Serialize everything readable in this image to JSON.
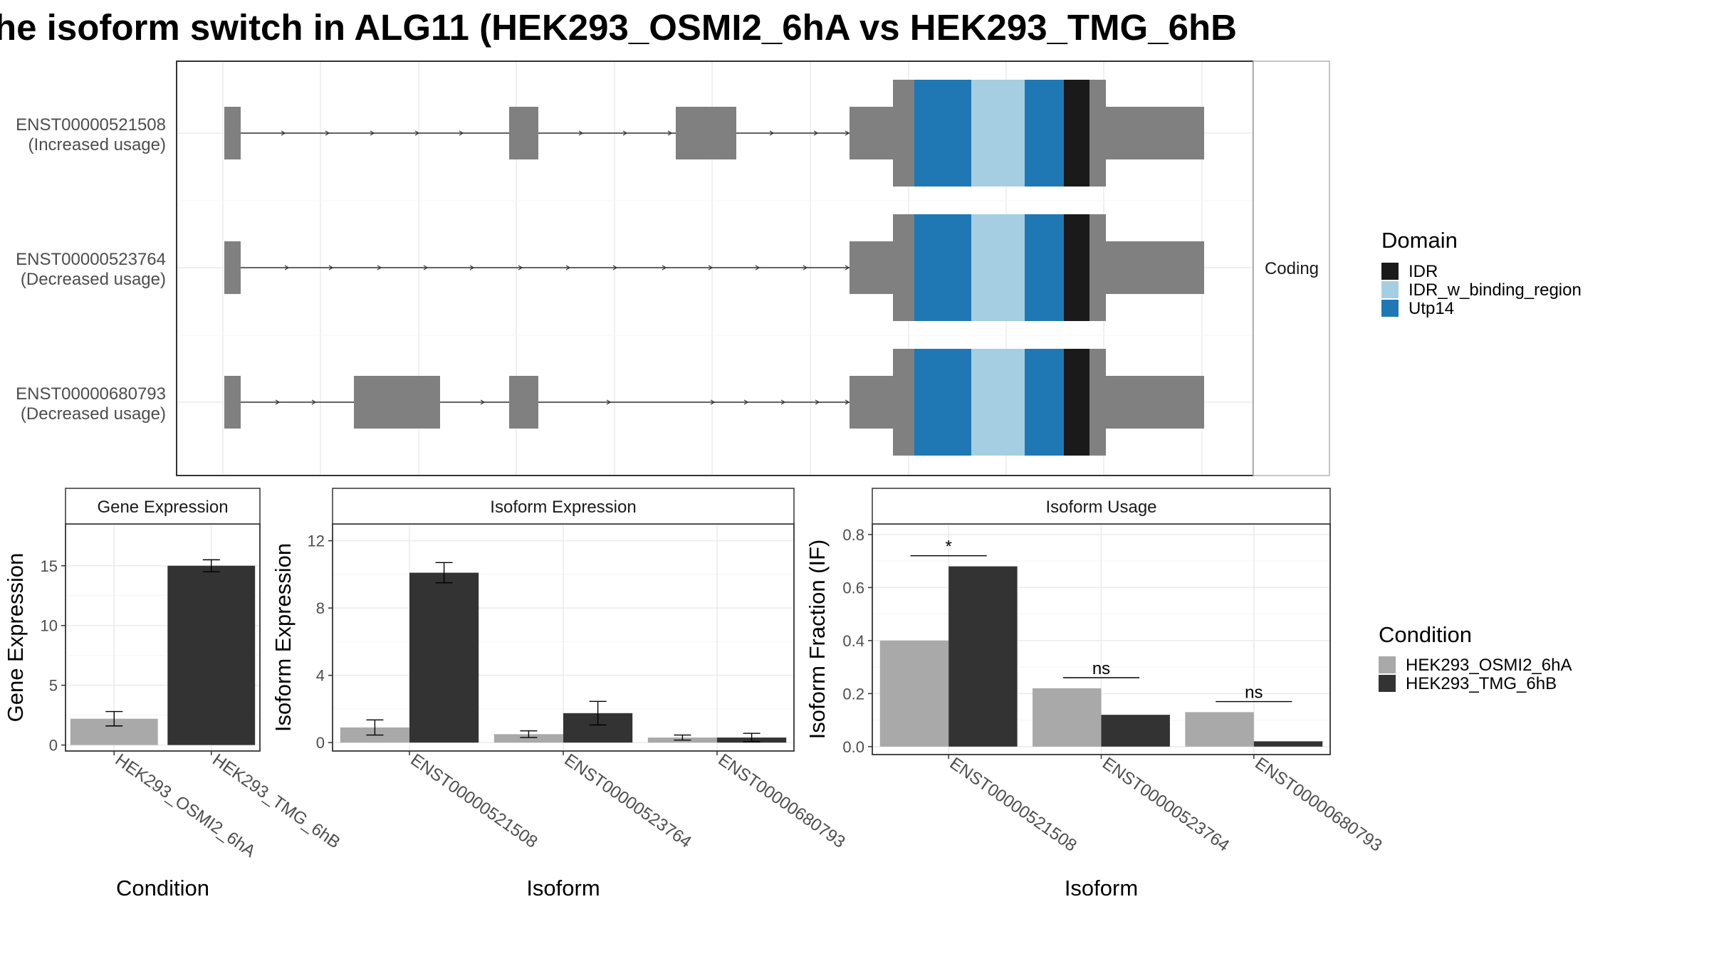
{
  "title": "he isoform switch in ALG11 (HEK293_OSMI2_6hA vs HEK293_TMG_6hB",
  "colors": {
    "exon": "#808080",
    "idr": "#1a1a1a",
    "idr_binding": "#a6cee3",
    "utp14": "#1f78b4",
    "cond_a": "#a9a9a9",
    "cond_b": "#333333"
  },
  "structure": {
    "facet_label": "Coding",
    "isoforms": [
      {
        "id": "ENST00000521508",
        "usage": "(Increased usage)"
      },
      {
        "id": "ENST00000523764",
        "usage": "(Decreased usage)"
      },
      {
        "id": "ENST00000680793",
        "usage": "(Decreased usage)"
      }
    ],
    "domain_legend": {
      "title": "Domain",
      "items": [
        {
          "label": "IDR",
          "color": "#1a1a1a"
        },
        {
          "label": "IDR_w_binding_region",
          "color": "#a6cee3"
        },
        {
          "label": "Utp14",
          "color": "#1f78b4"
        }
      ]
    }
  },
  "condition_legend": {
    "title": "Condition",
    "items": [
      {
        "label": "HEK293_OSMI2_6hA",
        "color": "#a9a9a9"
      },
      {
        "label": "HEK293_TMG_6hB",
        "color": "#333333"
      }
    ]
  },
  "chart_data": [
    {
      "type": "bar",
      "title": "Gene Expression",
      "xlabel": "Condition",
      "ylabel": "Gene Expression",
      "ylim": [
        -0.5,
        18.5
      ],
      "yticks": [
        0,
        5,
        10,
        15
      ],
      "categories": [
        "HEK293_OSMI2_6hA",
        "HEK293_TMG_6hB"
      ],
      "values": [
        2.2,
        15.0
      ],
      "errors": [
        0.6,
        0.5
      ]
    },
    {
      "type": "bar",
      "title": "Isoform Expression",
      "xlabel": "Isoform",
      "ylabel": "Isoform Expression",
      "ylim": [
        -0.5,
        13
      ],
      "yticks": [
        0,
        4,
        8,
        12
      ],
      "categories": [
        "ENST00000521508",
        "ENST00000523764",
        "ENST00000680793"
      ],
      "series": [
        {
          "name": "HEK293_OSMI2_6hA",
          "values": [
            0.9,
            0.5,
            0.3
          ],
          "errors": [
            0.45,
            0.2,
            0.15
          ]
        },
        {
          "name": "HEK293_TMG_6hB",
          "values": [
            10.1,
            1.75,
            0.3
          ],
          "errors": [
            0.6,
            0.7,
            0.25
          ]
        }
      ]
    },
    {
      "type": "bar",
      "title": "Isoform Usage",
      "xlabel": "Isoform",
      "ylabel": "Isoform Fraction (IF)",
      "ylim": [
        -0.03,
        0.84
      ],
      "yticks": [
        0.0,
        0.2,
        0.4,
        0.6,
        0.8
      ],
      "ytick_labels": [
        "0.0",
        "0.2",
        "0.4",
        "0.6",
        "0.8"
      ],
      "categories": [
        "ENST00000521508",
        "ENST00000523764",
        "ENST00000680793"
      ],
      "series": [
        {
          "name": "HEK293_OSMI2_6hA",
          "values": [
            0.4,
            0.22,
            0.13
          ]
        },
        {
          "name": "HEK293_TMG_6hB",
          "values": [
            0.68,
            0.12,
            0.02
          ]
        }
      ],
      "significance": [
        {
          "label": "*",
          "y": 0.72
        },
        {
          "label": "ns",
          "y": 0.26
        },
        {
          "label": "ns",
          "y": 0.17
        }
      ]
    }
  ]
}
